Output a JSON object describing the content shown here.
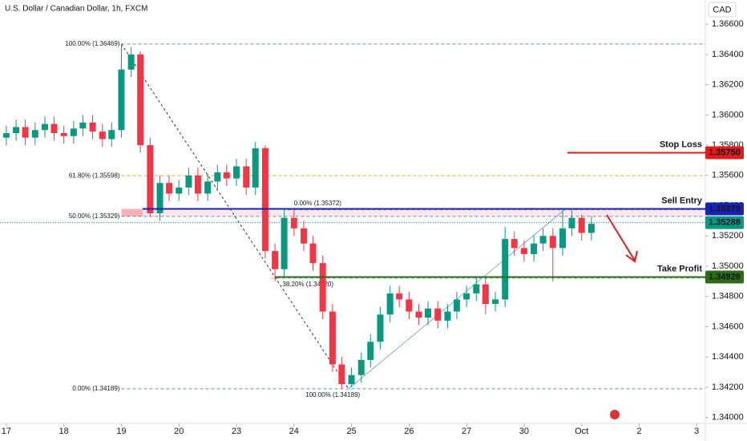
{
  "chart_data": {
    "type": "candlestick",
    "title": "U.S. Dollar / Canadian Dollar, 1h, FXCM",
    "currency": "CAD",
    "up_color": "#089981",
    "down_color": "#f23645",
    "xlim": [
      -0.11,
      12.15
    ],
    "ylim": [
      1.3395,
      1.3676
    ],
    "xticks": [
      {
        "value": 0,
        "label": "17"
      },
      {
        "value": 1,
        "label": "18"
      },
      {
        "value": 2,
        "label": "19"
      },
      {
        "value": 3,
        "label": "20"
      },
      {
        "value": 4,
        "label": "23"
      },
      {
        "value": 5,
        "label": "24"
      },
      {
        "value": 6,
        "label": "25"
      },
      {
        "value": 7,
        "label": "26"
      },
      {
        "value": 8,
        "label": "27"
      },
      {
        "value": 9,
        "label": "30"
      },
      {
        "value": 10,
        "label": "Oct"
      },
      {
        "value": 11,
        "label": "2"
      },
      {
        "value": 12,
        "label": "3"
      }
    ],
    "yticks": [
      {
        "value": 1.366,
        "label": "1.36600"
      },
      {
        "value": 1.364,
        "label": "1.36400"
      },
      {
        "value": 1.362,
        "label": "1.36200"
      },
      {
        "value": 1.36,
        "label": "1.36000"
      },
      {
        "value": 1.358,
        "label": "1.35800"
      },
      {
        "value": 1.356,
        "label": "1.35600"
      },
      {
        "value": 1.354,
        "label": "1.35400"
      },
      {
        "value": 1.352,
        "label": "1.35200"
      },
      {
        "value": 1.35,
        "label": "1.35000"
      },
      {
        "value": 1.348,
        "label": "1.34800"
      },
      {
        "value": 1.346,
        "label": "1.34600"
      },
      {
        "value": 1.344,
        "label": "1.34400"
      },
      {
        "value": 1.342,
        "label": "1.34200"
      },
      {
        "value": 1.34,
        "label": "1.34000"
      }
    ],
    "x": [
      0,
      0.17,
      0.33,
      0.5,
      0.67,
      0.83,
      1,
      1.17,
      1.33,
      1.5,
      1.67,
      1.83,
      2,
      2.17,
      2.33,
      2.5,
      2.67,
      2.83,
      3,
      3.17,
      3.33,
      3.5,
      3.67,
      3.83,
      4,
      4.17,
      4.33,
      4.5,
      4.67,
      4.83,
      5,
      5.17,
      5.33,
      5.5,
      5.67,
      5.83,
      6,
      6.17,
      6.33,
      6.5,
      6.67,
      6.83,
      7,
      7.17,
      7.33,
      7.5,
      7.67,
      7.83,
      8,
      8.17,
      8.33,
      8.5,
      8.67,
      8.83,
      9,
      9.17,
      9.33,
      9.5,
      9.67,
      9.83,
      10,
      10.17
    ],
    "open": [
      1.3585,
      1.3588,
      1.3592,
      1.3585,
      1.359,
      1.3594,
      1.3588,
      1.3586,
      1.3591,
      1.3595,
      1.3589,
      1.3584,
      1.359,
      1.363,
      1.364,
      1.358,
      1.3535,
      1.3555,
      1.3548,
      1.3552,
      1.356,
      1.3548,
      1.3556,
      1.3562,
      1.3558,
      1.3566,
      1.3552,
      1.3578,
      1.351,
      1.3498,
      1.3532,
      1.3525,
      1.3515,
      1.3502,
      1.347,
      1.3435,
      1.3422,
      1.3428,
      1.3438,
      1.345,
      1.3468,
      1.3482,
      1.3478,
      1.347,
      1.3466,
      1.3472,
      1.3464,
      1.347,
      1.3478,
      1.3482,
      1.3488,
      1.3475,
      1.3478,
      1.3518,
      1.3512,
      1.3508,
      1.3515,
      1.352,
      1.3512,
      1.3525,
      1.3532,
      1.3522
    ],
    "high": [
      1.3593,
      1.3597,
      1.3597,
      1.3595,
      1.3599,
      1.3599,
      1.3593,
      1.3596,
      1.36,
      1.36,
      1.3594,
      1.3595,
      1.3647,
      1.3645,
      1.3642,
      1.3585,
      1.356,
      1.356,
      1.3557,
      1.3565,
      1.3565,
      1.3561,
      1.3567,
      1.3567,
      1.3571,
      1.3571,
      1.3582,
      1.358,
      1.3515,
      1.3538,
      1.3537,
      1.353,
      1.352,
      1.3507,
      1.3475,
      1.344,
      1.3433,
      1.3443,
      1.3455,
      1.3473,
      1.3487,
      1.3487,
      1.3483,
      1.3475,
      1.3477,
      1.3477,
      1.3475,
      1.3483,
      1.3487,
      1.3493,
      1.3493,
      1.3483,
      1.3526,
      1.3523,
      1.3517,
      1.352,
      1.3525,
      1.3525,
      1.3537,
      1.3537,
      1.3534,
      1.3533
    ],
    "low": [
      1.358,
      1.3583,
      1.358,
      1.358,
      1.3585,
      1.3583,
      1.3581,
      1.3581,
      1.3586,
      1.3584,
      1.3579,
      1.3579,
      1.3585,
      1.3625,
      1.3575,
      1.3533,
      1.353,
      1.3543,
      1.3543,
      1.3547,
      1.3543,
      1.3543,
      1.3551,
      1.3553,
      1.3553,
      1.3547,
      1.3547,
      1.3505,
      1.349,
      1.3493,
      1.352,
      1.351,
      1.3497,
      1.3465,
      1.343,
      1.3419,
      1.342,
      1.3423,
      1.3433,
      1.3445,
      1.3463,
      1.3473,
      1.3465,
      1.3461,
      1.3461,
      1.3459,
      1.3459,
      1.3465,
      1.3473,
      1.3477,
      1.3468,
      1.347,
      1.3473,
      1.3507,
      1.3503,
      1.3503,
      1.351,
      1.349,
      1.3507,
      1.352,
      1.3517,
      1.3517
    ],
    "close": [
      1.3588,
      1.3592,
      1.3585,
      1.359,
      1.3594,
      1.3588,
      1.3586,
      1.3591,
      1.3595,
      1.3589,
      1.3584,
      1.359,
      1.363,
      1.364,
      1.358,
      1.3535,
      1.3555,
      1.3548,
      1.3552,
      1.356,
      1.3548,
      1.3556,
      1.3562,
      1.3558,
      1.3566,
      1.3552,
      1.3578,
      1.351,
      1.3498,
      1.3532,
      1.3525,
      1.3515,
      1.3502,
      1.347,
      1.3435,
      1.3422,
      1.3428,
      1.3438,
      1.345,
      1.3468,
      1.3482,
      1.3478,
      1.347,
      1.3466,
      1.3472,
      1.3464,
      1.347,
      1.3478,
      1.3482,
      1.3488,
      1.3475,
      1.3478,
      1.3518,
      1.3512,
      1.3508,
      1.3515,
      1.352,
      1.3512,
      1.3525,
      1.3532,
      1.3522,
      1.3528
    ],
    "levels": [
      {
        "name": "Stop Loss",
        "value": 1.3575,
        "label": "1.35750",
        "color": "#e31b1b"
      },
      {
        "name": "Sell Entry",
        "value": 1.35379,
        "label": "1.35379",
        "color": "#1b22b5"
      },
      {
        "value": 1.35288,
        "label": "1.35288",
        "color": "#089981"
      },
      {
        "name": "Take Profit",
        "value": 1.34928,
        "label": "1.34928",
        "color": "#2e6b12"
      }
    ],
    "fib_levels": [
      {
        "label": "100.00% (1.36469)",
        "value": 1.36469,
        "color": "#5d8fc4"
      },
      {
        "label": "61.80% (1.35598)",
        "value": 1.35598,
        "color": "#f5a623"
      },
      {
        "label": "50.00% (1.35329)",
        "value": 1.35329,
        "color": "#5d8fc4"
      },
      {
        "label": "0.00% (1.34189)",
        "value": 1.34189,
        "color": "#5d8fc4"
      }
    ],
    "fib_levels_2": [
      {
        "label": "0.00% (1.35372)",
        "value": 1.35372,
        "color": "#5d8fc4"
      },
      {
        "label": "38.20% (1.34920)",
        "value": 1.3492,
        "color": "#5d8fc4"
      },
      {
        "label": "100.00% (1.34189)",
        "value": 1.34189,
        "color": "#5d8fc4"
      }
    ]
  }
}
